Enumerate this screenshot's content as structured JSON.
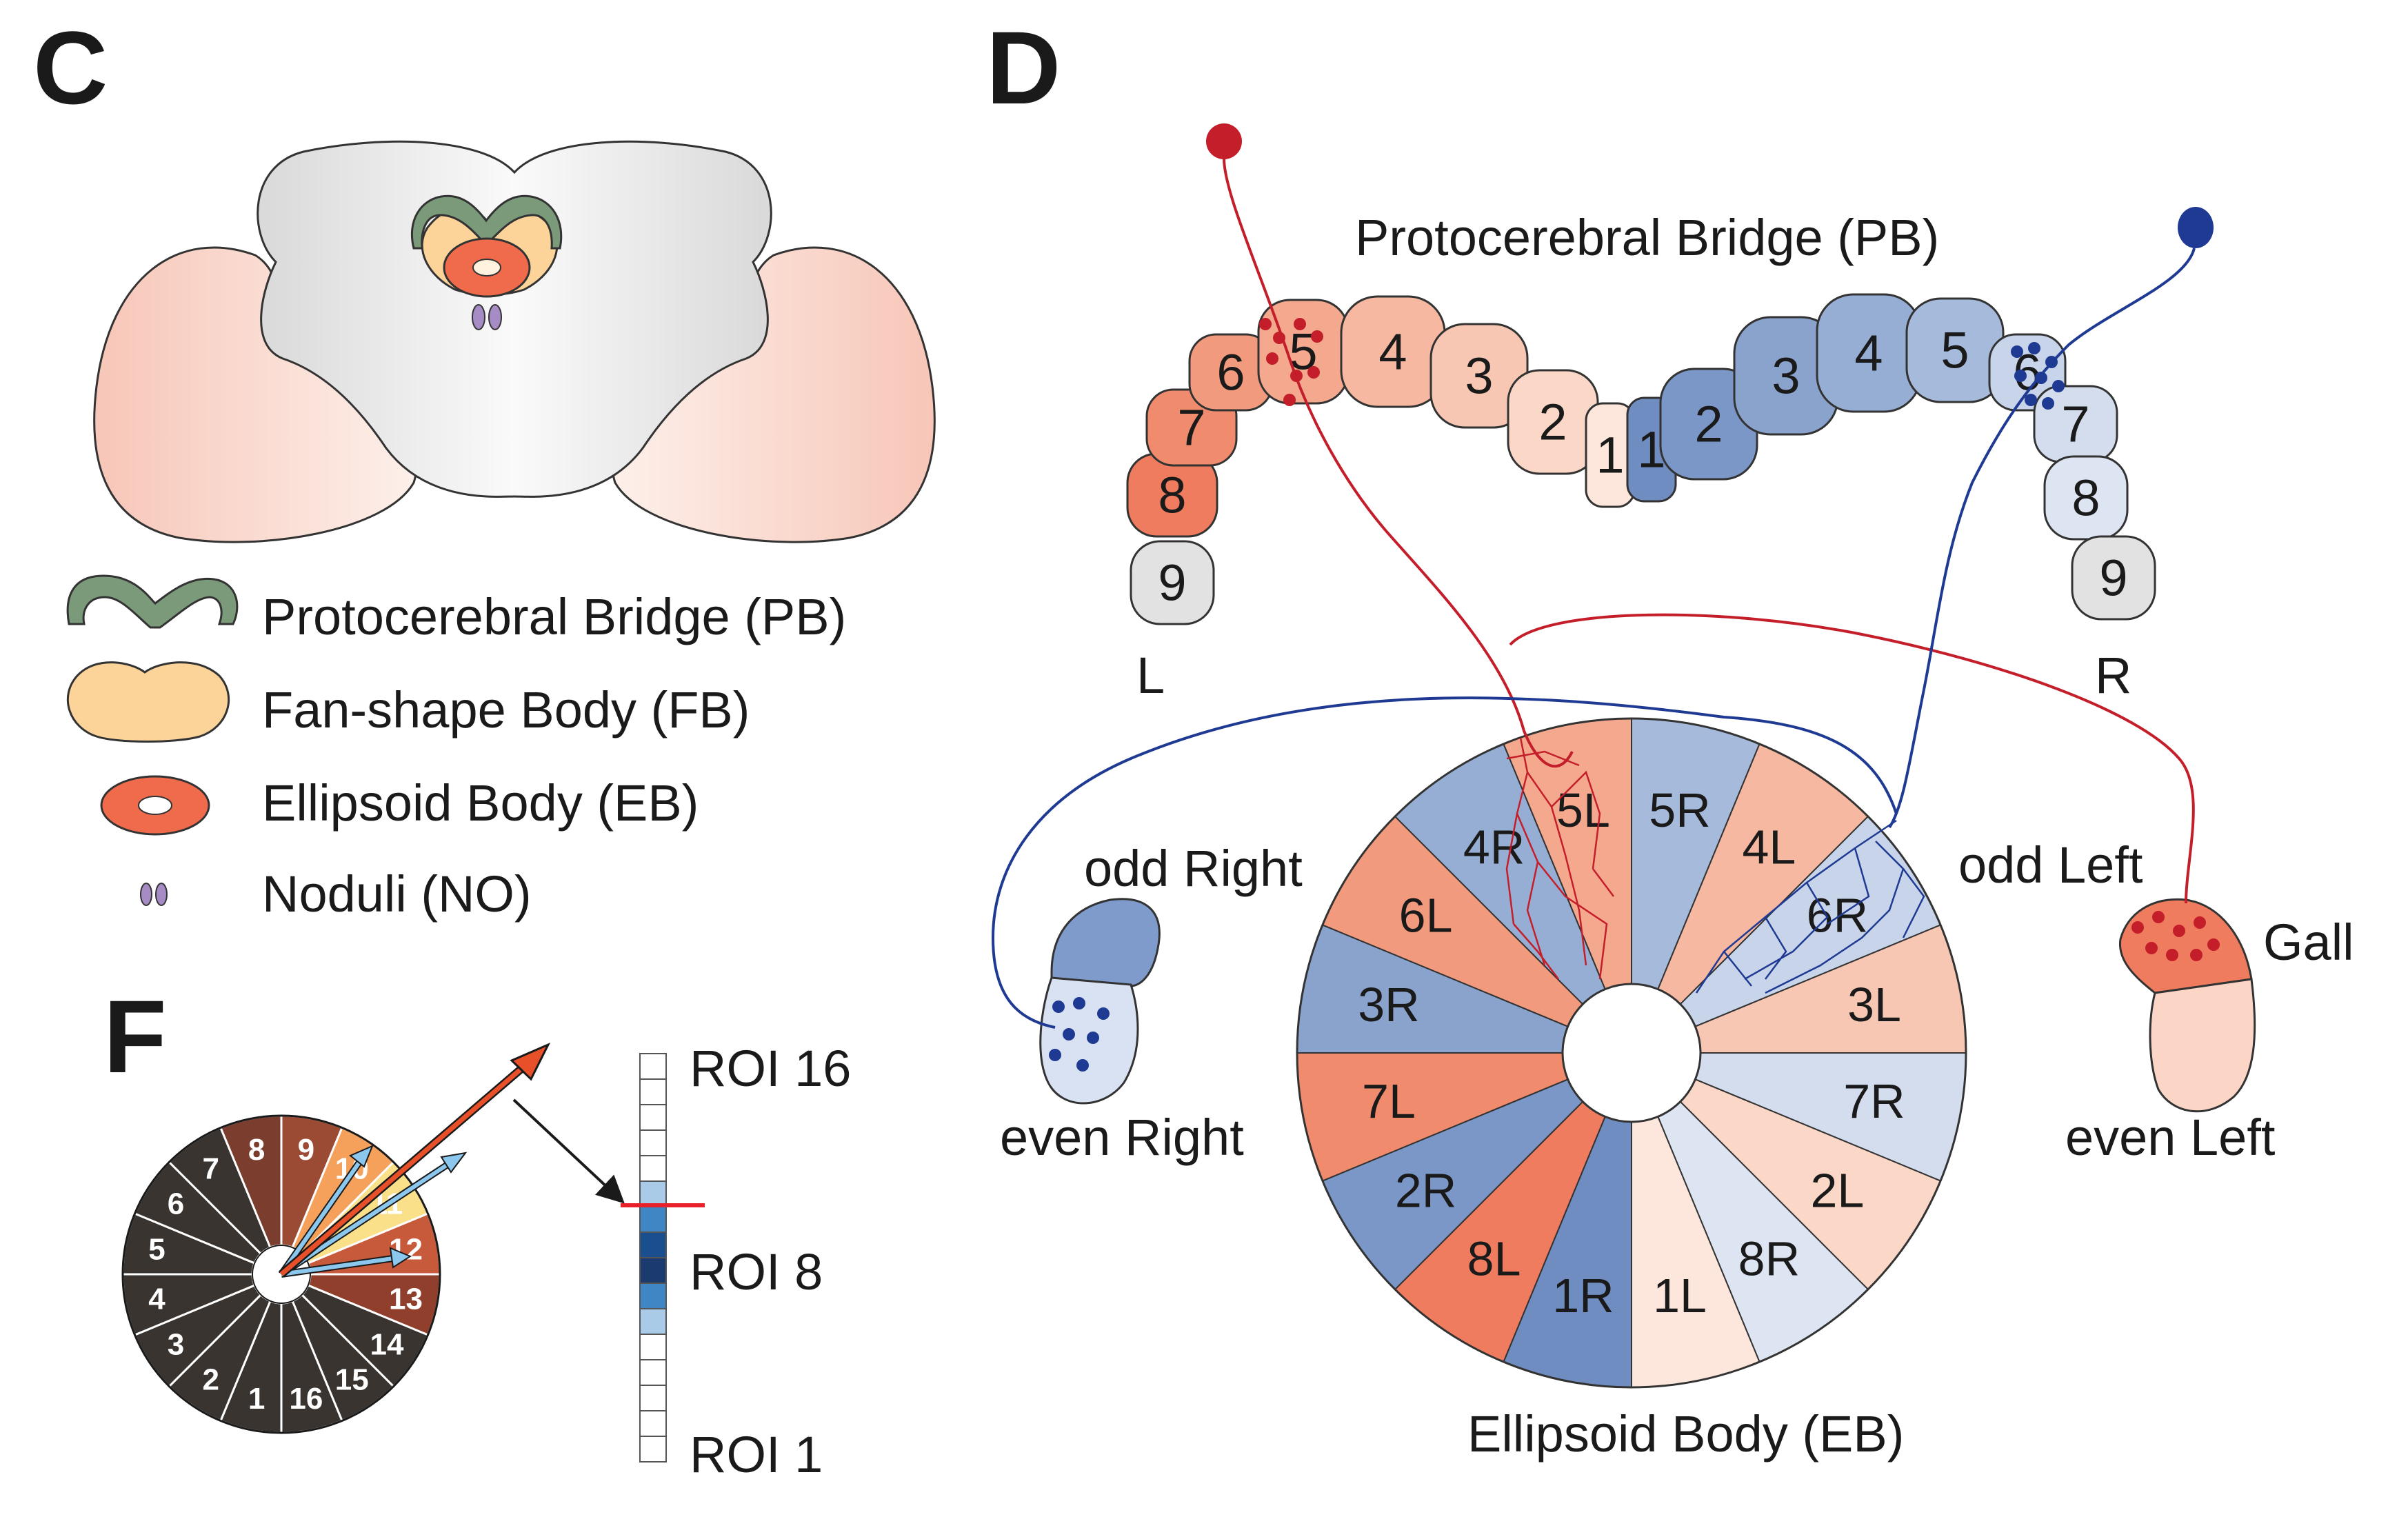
{
  "panels": {
    "c": "C",
    "d": "D",
    "f": "F"
  },
  "legend": [
    {
      "label": "Protocerebral Bridge (PB)",
      "color": "#7b9a7a"
    },
    {
      "label": "Fan-shape Body (FB)",
      "color": "#fcd49a"
    },
    {
      "label": "Ellipsoid Body (EB)",
      "color": "#ef6b4c"
    },
    {
      "label": "Noduli (NO)",
      "color": "#a68bc4"
    }
  ],
  "pb": {
    "title": "Protocerebral Bridge (PB)",
    "left_glomeruli": [
      "9",
      "8",
      "7",
      "6",
      "5",
      "4",
      "3",
      "2",
      "1"
    ],
    "right_glomeruli": [
      "1",
      "2",
      "3",
      "4",
      "5",
      "6",
      "7",
      "8",
      "9"
    ],
    "side_left": "L",
    "side_right": "R"
  },
  "eb": {
    "title": "Ellipsoid Body (EB)",
    "wedges": [
      "5R",
      "4L",
      "6R",
      "3L",
      "7R",
      "2L",
      "8R",
      "1L",
      "1R",
      "8L",
      "2R",
      "7L",
      "3R",
      "6L",
      "4R",
      "5L"
    ]
  },
  "gall_labels": {
    "odd_right": "odd Right",
    "even_right": "even Right",
    "odd_left": "odd Left",
    "even_left": "even Left",
    "gall": "Gall"
  },
  "f": {
    "wheel_numbers": [
      "1",
      "2",
      "3",
      "4",
      "5",
      "6",
      "7",
      "8",
      "9",
      "10",
      "11",
      "12",
      "13",
      "14",
      "15",
      "16"
    ],
    "roi_top": "ROI 16",
    "roi_mid": "ROI 8",
    "roi_bottom": "ROI 1"
  },
  "colors": {
    "red_neuron": "#c41e2a",
    "blue_neuron": "#1f3a93",
    "pb_red_dark": "#ef7c5e",
    "pb_blue_dark": "#6f8dc0",
    "gray": "#e2e2e2"
  }
}
